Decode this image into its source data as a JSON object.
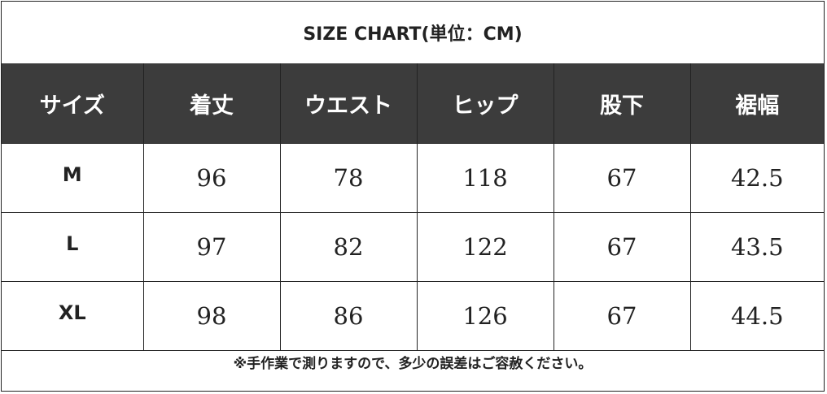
{
  "title": "SIZE CHART(単位：CM)",
  "headers": [
    "サイズ",
    "着丈",
    "ウエスト",
    "ヒップ",
    "股下",
    "裾幅"
  ],
  "rows": [
    {
      "size": "M",
      "values": [
        "96",
        "78",
        "118",
        "67",
        "42.5"
      ]
    },
    {
      "size": "L",
      "values": [
        "97",
        "82",
        "122",
        "67",
        "43.5"
      ]
    },
    {
      "size": "XL",
      "values": [
        "98",
        "86",
        "126",
        "67",
        "44.5"
      ]
    }
  ],
  "note": "※手作業で測りますので、多少の誤差はご容赦ください。",
  "colors": {
    "header_bg": "#3c3c3c",
    "header_text": "#ffffff",
    "border": "#222222",
    "body_text": "#222222"
  }
}
